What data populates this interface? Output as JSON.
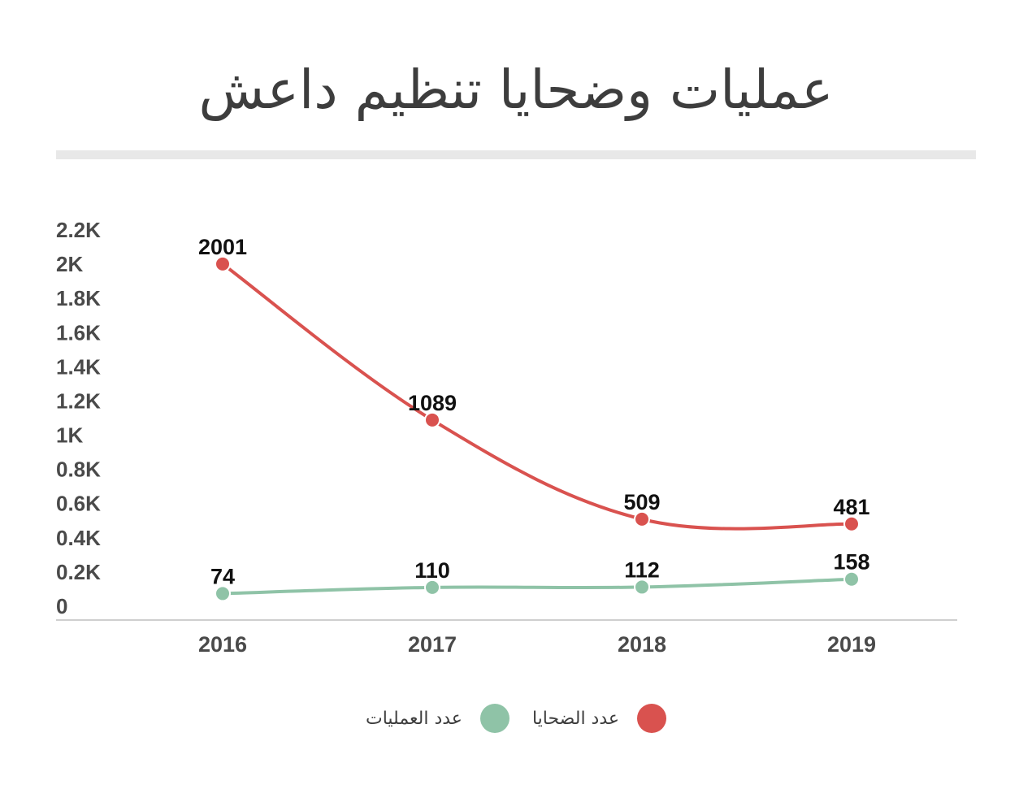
{
  "chart_data": {
    "type": "line",
    "title": "عمليات وضحايا تنظيم داعش",
    "categories": [
      "2016",
      "2017",
      "2018",
      "2019"
    ],
    "yticks": [
      "0",
      "0.2K",
      "0.4K",
      "0.6K",
      "0.8K",
      "1K",
      "1.2K",
      "1.4K",
      "1.6K",
      "1.8K",
      "2K",
      "2.2K"
    ],
    "ylim": [
      0,
      2200
    ],
    "legend_position": "bottom",
    "grid": false,
    "series": [
      {
        "name": "عدد الضحايا",
        "color": "#d9524f",
        "values": [
          2001,
          1089,
          509,
          481
        ],
        "labels": [
          "2001",
          "1089",
          "509",
          "481"
        ]
      },
      {
        "name": "عدد العمليات",
        "color": "#8fc3a7",
        "values": [
          74,
          110,
          112,
          158
        ],
        "labels": [
          "74",
          "110",
          "112",
          "158"
        ]
      }
    ]
  }
}
